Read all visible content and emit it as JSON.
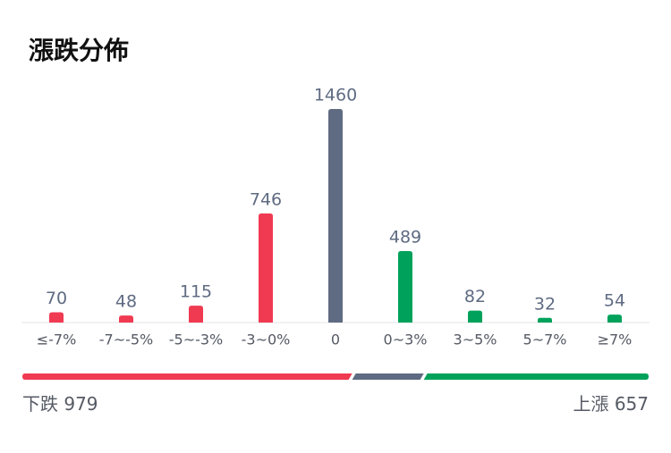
{
  "chart_data": {
    "type": "bar",
    "title": "漲跌分佈",
    "categories": [
      "≤-7%",
      "-7~-5%",
      "-5~-3%",
      "-3~0%",
      "0",
      "0~3%",
      "3~5%",
      "5~7%",
      "≥7%"
    ],
    "values": [
      70,
      48,
      115,
      746,
      1460,
      489,
      82,
      32,
      54
    ],
    "colors": [
      "#f03a52",
      "#f03a52",
      "#f03a52",
      "#f03a52",
      "#5f6b82",
      "#00a25b",
      "#00a25b",
      "#00a25b",
      "#00a25b"
    ],
    "summary": {
      "down_label": "下跌",
      "down": 979,
      "down_color": "#f03a52",
      "flat_color": "#5f6b82",
      "up_label": "上漲",
      "up": 657,
      "up_color": "#00a25b"
    }
  }
}
